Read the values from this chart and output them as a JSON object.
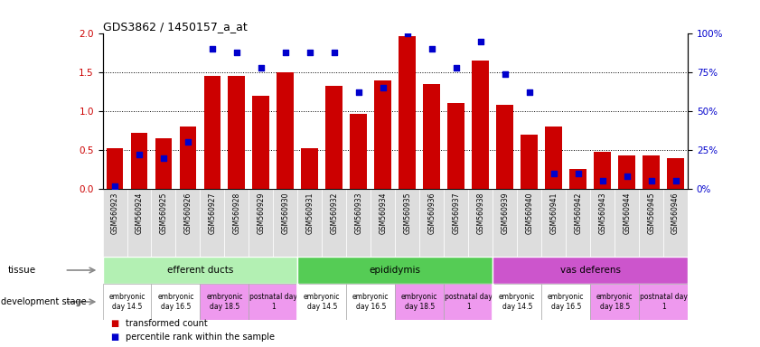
{
  "title": "GDS3862 / 1450157_a_at",
  "gsm_labels": [
    "GSM560923",
    "GSM560924",
    "GSM560925",
    "GSM560926",
    "GSM560927",
    "GSM560928",
    "GSM560929",
    "GSM560930",
    "GSM560931",
    "GSM560932",
    "GSM560933",
    "GSM560934",
    "GSM560935",
    "GSM560936",
    "GSM560937",
    "GSM560938",
    "GSM560939",
    "GSM560940",
    "GSM560941",
    "GSM560942",
    "GSM560943",
    "GSM560944",
    "GSM560945",
    "GSM560946"
  ],
  "bar_values": [
    0.52,
    0.72,
    0.65,
    0.8,
    1.45,
    1.45,
    1.2,
    1.5,
    0.52,
    1.32,
    0.97,
    1.4,
    1.97,
    1.35,
    1.1,
    1.65,
    1.08,
    0.7,
    0.8,
    0.26,
    0.48,
    0.43,
    0.43,
    0.4
  ],
  "dot_values": [
    2,
    22,
    20,
    30,
    90,
    88,
    78,
    88,
    88,
    88,
    62,
    65,
    100,
    90,
    78,
    95,
    74,
    62,
    10,
    10,
    5,
    8,
    5,
    5
  ],
  "bar_color": "#cc0000",
  "dot_color": "#0000cc",
  "ylim_left": [
    0,
    2.0
  ],
  "ylim_right": [
    0,
    100
  ],
  "yticks_left": [
    0,
    0.5,
    1.0,
    1.5,
    2.0
  ],
  "yticks_right": [
    0,
    25,
    50,
    75,
    100
  ],
  "tissue_groups": [
    {
      "label": "efferent ducts",
      "start": 0,
      "end": 8,
      "color": "#b3f0b3"
    },
    {
      "label": "epididymis",
      "start": 8,
      "end": 16,
      "color": "#55cc55"
    },
    {
      "label": "vas deferens",
      "start": 16,
      "end": 24,
      "color": "#cc55cc"
    }
  ],
  "dev_stage_groups": [
    {
      "label": "embryonic\nday 14.5",
      "start": 0,
      "end": 2,
      "color": "#ffffff"
    },
    {
      "label": "embryonic\nday 16.5",
      "start": 2,
      "end": 4,
      "color": "#ffffff"
    },
    {
      "label": "embryonic\nday 18.5",
      "start": 4,
      "end": 6,
      "color": "#ee99ee"
    },
    {
      "label": "postnatal day\n1",
      "start": 6,
      "end": 8,
      "color": "#ee99ee"
    },
    {
      "label": "embryonic\nday 14.5",
      "start": 8,
      "end": 10,
      "color": "#ffffff"
    },
    {
      "label": "embryonic\nday 16.5",
      "start": 10,
      "end": 12,
      "color": "#ffffff"
    },
    {
      "label": "embryonic\nday 18.5",
      "start": 12,
      "end": 14,
      "color": "#ee99ee"
    },
    {
      "label": "postnatal day\n1",
      "start": 14,
      "end": 16,
      "color": "#ee99ee"
    },
    {
      "label": "embryonic\nday 14.5",
      "start": 16,
      "end": 18,
      "color": "#ffffff"
    },
    {
      "label": "embryonic\nday 16.5",
      "start": 18,
      "end": 20,
      "color": "#ffffff"
    },
    {
      "label": "embryonic\nday 18.5",
      "start": 20,
      "end": 22,
      "color": "#ee99ee"
    },
    {
      "label": "postnatal day\n1",
      "start": 22,
      "end": 24,
      "color": "#ee99ee"
    }
  ],
  "background_color": "#ffffff",
  "label_bg_color": "#dddddd",
  "tissue_separator_color": "#ffffff",
  "dev_separator_color": "#aaaaaa"
}
